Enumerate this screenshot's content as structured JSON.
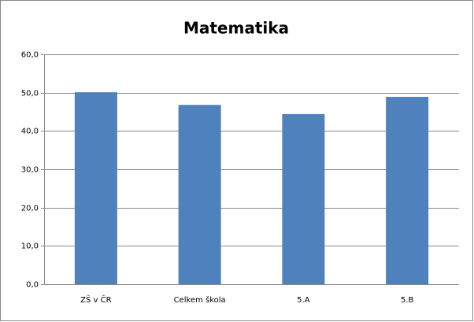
{
  "chart_data": {
    "type": "bar",
    "title": "Matematika",
    "categories": [
      "ZŠ v ČR",
      "Celkem škola",
      "5.A",
      "5.B"
    ],
    "values": [
      50.1,
      46.8,
      44.4,
      48.9
    ],
    "color": "#4f81bd",
    "ylim": [
      0,
      60
    ],
    "yticks": [
      {
        "value": 0,
        "label": "0,0"
      },
      {
        "value": 10,
        "label": "10,0"
      },
      {
        "value": 20,
        "label": "20,0"
      },
      {
        "value": 30,
        "label": "30,0"
      },
      {
        "value": 40,
        "label": "40,0"
      },
      {
        "value": 50,
        "label": "50,0"
      },
      {
        "value": 60,
        "label": "60,0"
      }
    ],
    "grid": true
  }
}
